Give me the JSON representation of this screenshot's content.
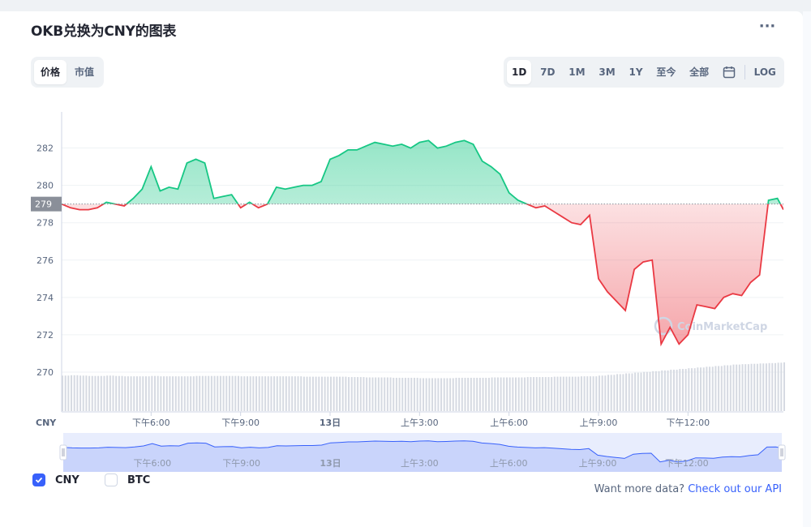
{
  "title": "OKB兑换为CNY的图表",
  "more_icon": "···",
  "view_tabs": [
    {
      "label": "价格",
      "active": true
    },
    {
      "label": "市值",
      "active": false
    }
  ],
  "range_tabs": [
    {
      "label": "1D",
      "active": true
    },
    {
      "label": "7D",
      "active": false
    },
    {
      "label": "1M",
      "active": false
    },
    {
      "label": "3M",
      "active": false
    },
    {
      "label": "1Y",
      "active": false
    },
    {
      "label": "至今",
      "active": false
    },
    {
      "label": "全部",
      "active": false
    }
  ],
  "calendar_icon": "calendar-icon",
  "log_label": "LOG",
  "watermark": "CoinMarketCap",
  "currency_label": "CNY",
  "legend": [
    {
      "label": "CNY",
      "checked": true
    },
    {
      "label": "BTC",
      "checked": false
    }
  ],
  "api_prompt": "Want more data?",
  "api_link": "Check out our API",
  "colors": {
    "up": "#16c784",
    "down": "#ea3943",
    "accent": "#3861fb",
    "reference": "#8a8f99",
    "navigator": "#3861fb"
  },
  "chart_data": {
    "type": "line",
    "reference_value": 279,
    "reference_label": "279",
    "ylim": [
      269,
      283.5
    ],
    "y_ticks": [
      270,
      272,
      274,
      276,
      278,
      280,
      282
    ],
    "y_tick_labels": [
      "270",
      "272",
      "274",
      "276",
      "278",
      "280",
      "282"
    ],
    "x_ticks": [
      {
        "label": "下午6:00",
        "t": 3.0
      },
      {
        "label": "下午9:00",
        "t": 6.0
      },
      {
        "label": "13日",
        "t": 9.0,
        "bold": true
      },
      {
        "label": "上午3:00",
        "t": 12.0
      },
      {
        "label": "上午6:00",
        "t": 15.0
      },
      {
        "label": "上午9:00",
        "t": 18.0
      },
      {
        "label": "下午12:00",
        "t": 21.0
      }
    ],
    "xlim": [
      0,
      24.2
    ],
    "x": [
      0.0,
      0.3,
      0.6,
      0.9,
      1.2,
      1.5,
      1.8,
      2.1,
      2.4,
      2.7,
      3.0,
      3.3,
      3.6,
      3.9,
      4.2,
      4.5,
      4.8,
      5.1,
      5.4,
      5.7,
      6.0,
      6.3,
      6.6,
      6.9,
      7.2,
      7.5,
      7.8,
      8.1,
      8.4,
      8.7,
      9.0,
      9.3,
      9.6,
      9.9,
      10.2,
      10.5,
      10.8,
      11.1,
      11.4,
      11.7,
      12.0,
      12.3,
      12.6,
      12.9,
      13.2,
      13.5,
      13.8,
      14.1,
      14.4,
      14.7,
      15.0,
      15.3,
      15.6,
      15.9,
      16.2,
      16.5,
      16.8,
      17.1,
      17.4,
      17.7,
      18.0,
      18.3,
      18.6,
      18.9,
      19.2,
      19.5,
      19.8,
      20.1,
      20.4,
      20.7,
      21.0,
      21.3,
      21.6,
      21.9,
      22.2,
      22.5,
      22.8,
      23.1,
      23.4,
      23.7,
      24.0,
      24.2
    ],
    "y": [
      279.0,
      278.8,
      278.7,
      278.7,
      278.8,
      279.1,
      279.0,
      278.9,
      279.3,
      279.8,
      281.0,
      279.7,
      279.9,
      279.8,
      281.2,
      281.4,
      281.2,
      279.3,
      279.4,
      279.5,
      278.8,
      279.1,
      278.8,
      279.0,
      279.9,
      279.8,
      279.9,
      280.0,
      280.0,
      280.2,
      281.4,
      281.6,
      281.9,
      281.9,
      282.1,
      282.3,
      282.2,
      282.1,
      282.2,
      282.0,
      282.3,
      282.4,
      282.0,
      282.1,
      282.3,
      282.4,
      282.2,
      281.3,
      281.0,
      280.6,
      279.6,
      279.2,
      279.0,
      278.8,
      278.9,
      278.6,
      278.3,
      278.0,
      277.9,
      278.4,
      275.0,
      274.3,
      273.8,
      273.3,
      275.5,
      275.9,
      276.0,
      271.5,
      272.4,
      271.5,
      272.0,
      273.6,
      273.5,
      273.4,
      274.0,
      274.2,
      274.1,
      274.8,
      275.2,
      279.2,
      279.3,
      278.7
    ],
    "volume": [
      0.92,
      0.93,
      0.92,
      0.91,
      0.91,
      0.92,
      0.91,
      0.9,
      0.9,
      0.9,
      0.91,
      0.9,
      0.9,
      0.9,
      0.9,
      0.91,
      0.91,
      0.91,
      0.91,
      0.91,
      0.9,
      0.9,
      0.9,
      0.9,
      0.9,
      0.9,
      0.9,
      0.89,
      0.89,
      0.89,
      0.89,
      0.89,
      0.88,
      0.88,
      0.87,
      0.87,
      0.87,
      0.86,
      0.86,
      0.86,
      0.85,
      0.85,
      0.85,
      0.85,
      0.86,
      0.86,
      0.86,
      0.86,
      0.87,
      0.87,
      0.87,
      0.87,
      0.88,
      0.88,
      0.88,
      0.89,
      0.89,
      0.89,
      0.9,
      0.9,
      0.92,
      0.94,
      0.96,
      0.98,
      1.0,
      1.02,
      1.04,
      1.06,
      1.08,
      1.1,
      1.12,
      1.14,
      1.16,
      1.18,
      1.2,
      1.22,
      1.23,
      1.24,
      1.25,
      1.26,
      1.27,
      1.28
    ]
  }
}
